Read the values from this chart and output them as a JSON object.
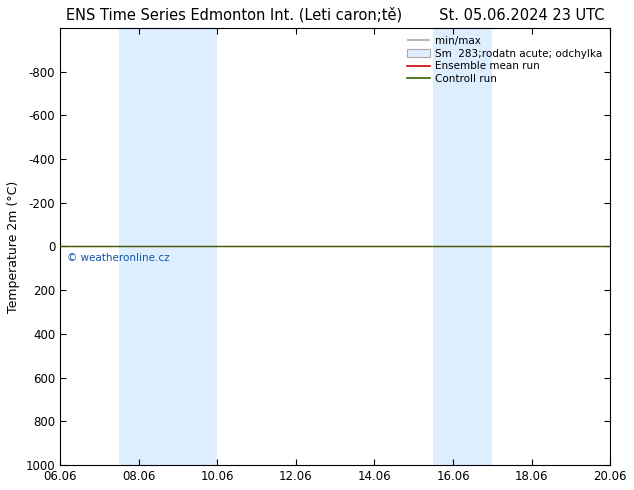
{
  "title": "ENS Time Series Edmonton Int. (Leti caron;tě)",
  "title_right": "St. 05.06.2024 23 UTC",
  "ylabel": "Temperature 2m (°C)",
  "watermark": "© weatheronline.cz",
  "xlim": [
    6.06,
    20.06
  ],
  "ylim_bottom": 1000,
  "ylim_top": -1000,
  "yticks": [
    -800,
    -600,
    -400,
    -200,
    0,
    200,
    400,
    600,
    800,
    1000
  ],
  "xticks": [
    6.06,
    8.06,
    10.06,
    12.06,
    14.06,
    16.06,
    18.06,
    20.06
  ],
  "xticklabels": [
    "06.06",
    "08.06",
    "10.06",
    "12.06",
    "14.06",
    "16.06",
    "18.06",
    "20.06"
  ],
  "background_color": "#ffffff",
  "plot_bg_color": "#ffffff",
  "shaded_bands": [
    {
      "xmin": 7.56,
      "xmax": 10.06
    },
    {
      "xmin": 15.56,
      "xmax": 17.06
    }
  ],
  "shaded_color": "#ddeeff",
  "green_line_y": 0,
  "green_line_color": "#336600",
  "red_line_y": 0,
  "red_line_color": "#cc0000",
  "minmax_line_color": "#aaaaaa",
  "std_band_facecolor": "#ddeeff",
  "std_band_edgecolor": "#aaaaaa",
  "legend_entries": [
    {
      "label": "min/max",
      "color": "#aaaaaa",
      "type": "line"
    },
    {
      "label": "Sm  283;rodatn acute; odchylka",
      "color": "#ddeeff",
      "type": "band"
    },
    {
      "label": "Ensemble mean run",
      "color": "#cc0000",
      "type": "line"
    },
    {
      "label": "Controll run",
      "color": "#336600",
      "type": "line"
    }
  ],
  "title_fontsize": 10.5,
  "tick_fontsize": 8.5,
  "ylabel_fontsize": 9,
  "watermark_color": "#1155aa",
  "border_color": "#000000",
  "spine_linewidth": 0.8
}
